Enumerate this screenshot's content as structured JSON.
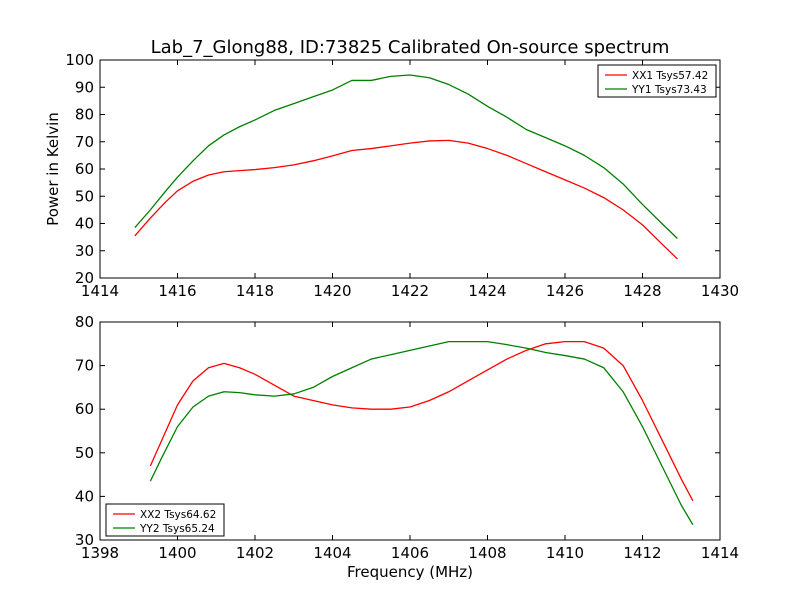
{
  "figure_title": "Lab_7_Glong88, ID:73825 Calibrated On-source spectrum",
  "shared_ylabel": "Power in Kelvin",
  "shared_xlabel": "Frequency (MHz)",
  "colors": {
    "xx": "#ff0000",
    "yy": "#008000"
  },
  "chart_data": [
    {
      "type": "line",
      "panel": "top",
      "xlim": [
        1414,
        1430
      ],
      "ylim": [
        20,
        100
      ],
      "xticks": [
        1414,
        1416,
        1418,
        1420,
        1422,
        1424,
        1426,
        1428,
        1430
      ],
      "yticks": [
        20,
        30,
        40,
        50,
        60,
        70,
        80,
        90,
        100
      ],
      "legend_position": "top-right",
      "series": [
        {
          "name": "XX1 Tsys57.42",
          "color": "#ff0000",
          "x": [
            1414.9,
            1415.3,
            1415.7,
            1416.0,
            1416.4,
            1416.8,
            1417.2,
            1417.6,
            1418.0,
            1418.5,
            1419.0,
            1419.5,
            1420.0,
            1420.5,
            1421.0,
            1421.5,
            1422.0,
            1422.5,
            1423.0,
            1423.5,
            1424.0,
            1424.5,
            1425.0,
            1425.5,
            1426.0,
            1426.5,
            1427.0,
            1427.5,
            1428.0,
            1428.5,
            1428.9
          ],
          "y": [
            35.5,
            42,
            48,
            52,
            55.5,
            57.8,
            59,
            59.4,
            59.8,
            60.5,
            61.5,
            63,
            64.8,
            66.8,
            67.5,
            68.5,
            69.5,
            70.3,
            70.5,
            69.5,
            67.5,
            65,
            62,
            59,
            56,
            53,
            49.5,
            45,
            39.5,
            32.5,
            27
          ]
        },
        {
          "name": "YY1 Tsys73.43",
          "color": "#008000",
          "x": [
            1414.9,
            1415.3,
            1415.7,
            1416.0,
            1416.4,
            1416.8,
            1417.2,
            1417.6,
            1418.0,
            1418.5,
            1419.0,
            1419.5,
            1420.0,
            1420.5,
            1421.0,
            1421.5,
            1422.0,
            1422.5,
            1423.0,
            1423.5,
            1424.0,
            1424.5,
            1425.0,
            1425.5,
            1426.0,
            1426.5,
            1427.0,
            1427.5,
            1428.0,
            1428.5,
            1428.9
          ],
          "y": [
            38.5,
            45,
            52,
            57,
            63,
            68.5,
            72.5,
            75.5,
            78,
            81.5,
            84,
            86.5,
            89,
            92.5,
            92.5,
            94,
            94.5,
            93.5,
            91,
            87.5,
            83,
            79,
            74.5,
            71.5,
            68.5,
            65,
            60.5,
            54.5,
            47,
            40,
            34.5
          ]
        }
      ]
    },
    {
      "type": "line",
      "panel": "bottom",
      "xlim": [
        1398,
        1414
      ],
      "ylim": [
        30,
        80
      ],
      "xticks": [
        1398,
        1400,
        1402,
        1404,
        1406,
        1408,
        1410,
        1412,
        1414
      ],
      "yticks": [
        30,
        40,
        50,
        60,
        70,
        80
      ],
      "legend_position": "bottom-left",
      "series": [
        {
          "name": "XX2 Tsys64.62",
          "color": "#ff0000",
          "x": [
            1399.3,
            1399.6,
            1400.0,
            1400.4,
            1400.8,
            1401.2,
            1401.6,
            1402.0,
            1402.5,
            1403.0,
            1403.5,
            1404.0,
            1404.5,
            1405.0,
            1405.5,
            1406.0,
            1406.5,
            1407.0,
            1407.5,
            1408.0,
            1408.5,
            1409.0,
            1409.5,
            1410.0,
            1410.5,
            1411.0,
            1411.5,
            1412.0,
            1412.5,
            1413.0,
            1413.3
          ],
          "y": [
            47,
            53,
            61,
            66.5,
            69.5,
            70.5,
            69.5,
            68,
            65.5,
            63,
            62,
            61,
            60.3,
            60,
            60,
            60.5,
            62,
            64,
            66.5,
            69,
            71.5,
            73.5,
            75,
            75.5,
            75.5,
            74,
            70,
            62,
            53,
            44,
            39
          ]
        },
        {
          "name": "YY2 Tsys65.24",
          "color": "#008000",
          "x": [
            1399.3,
            1399.6,
            1400.0,
            1400.4,
            1400.8,
            1401.2,
            1401.6,
            1402.0,
            1402.5,
            1403.0,
            1403.5,
            1404.0,
            1404.5,
            1405.0,
            1405.5,
            1406.0,
            1406.5,
            1407.0,
            1407.5,
            1408.0,
            1408.5,
            1409.0,
            1409.5,
            1410.0,
            1410.5,
            1411.0,
            1411.5,
            1412.0,
            1412.5,
            1413.0,
            1413.3
          ],
          "y": [
            43.5,
            49,
            56,
            60.5,
            63,
            64,
            63.8,
            63.3,
            63,
            63.5,
            65,
            67.5,
            69.5,
            71.5,
            72.5,
            73.5,
            74.5,
            75.5,
            75.5,
            75.5,
            74.8,
            74,
            73,
            72.3,
            71.5,
            69.5,
            64,
            56,
            47,
            38,
            33.5
          ]
        }
      ]
    }
  ]
}
